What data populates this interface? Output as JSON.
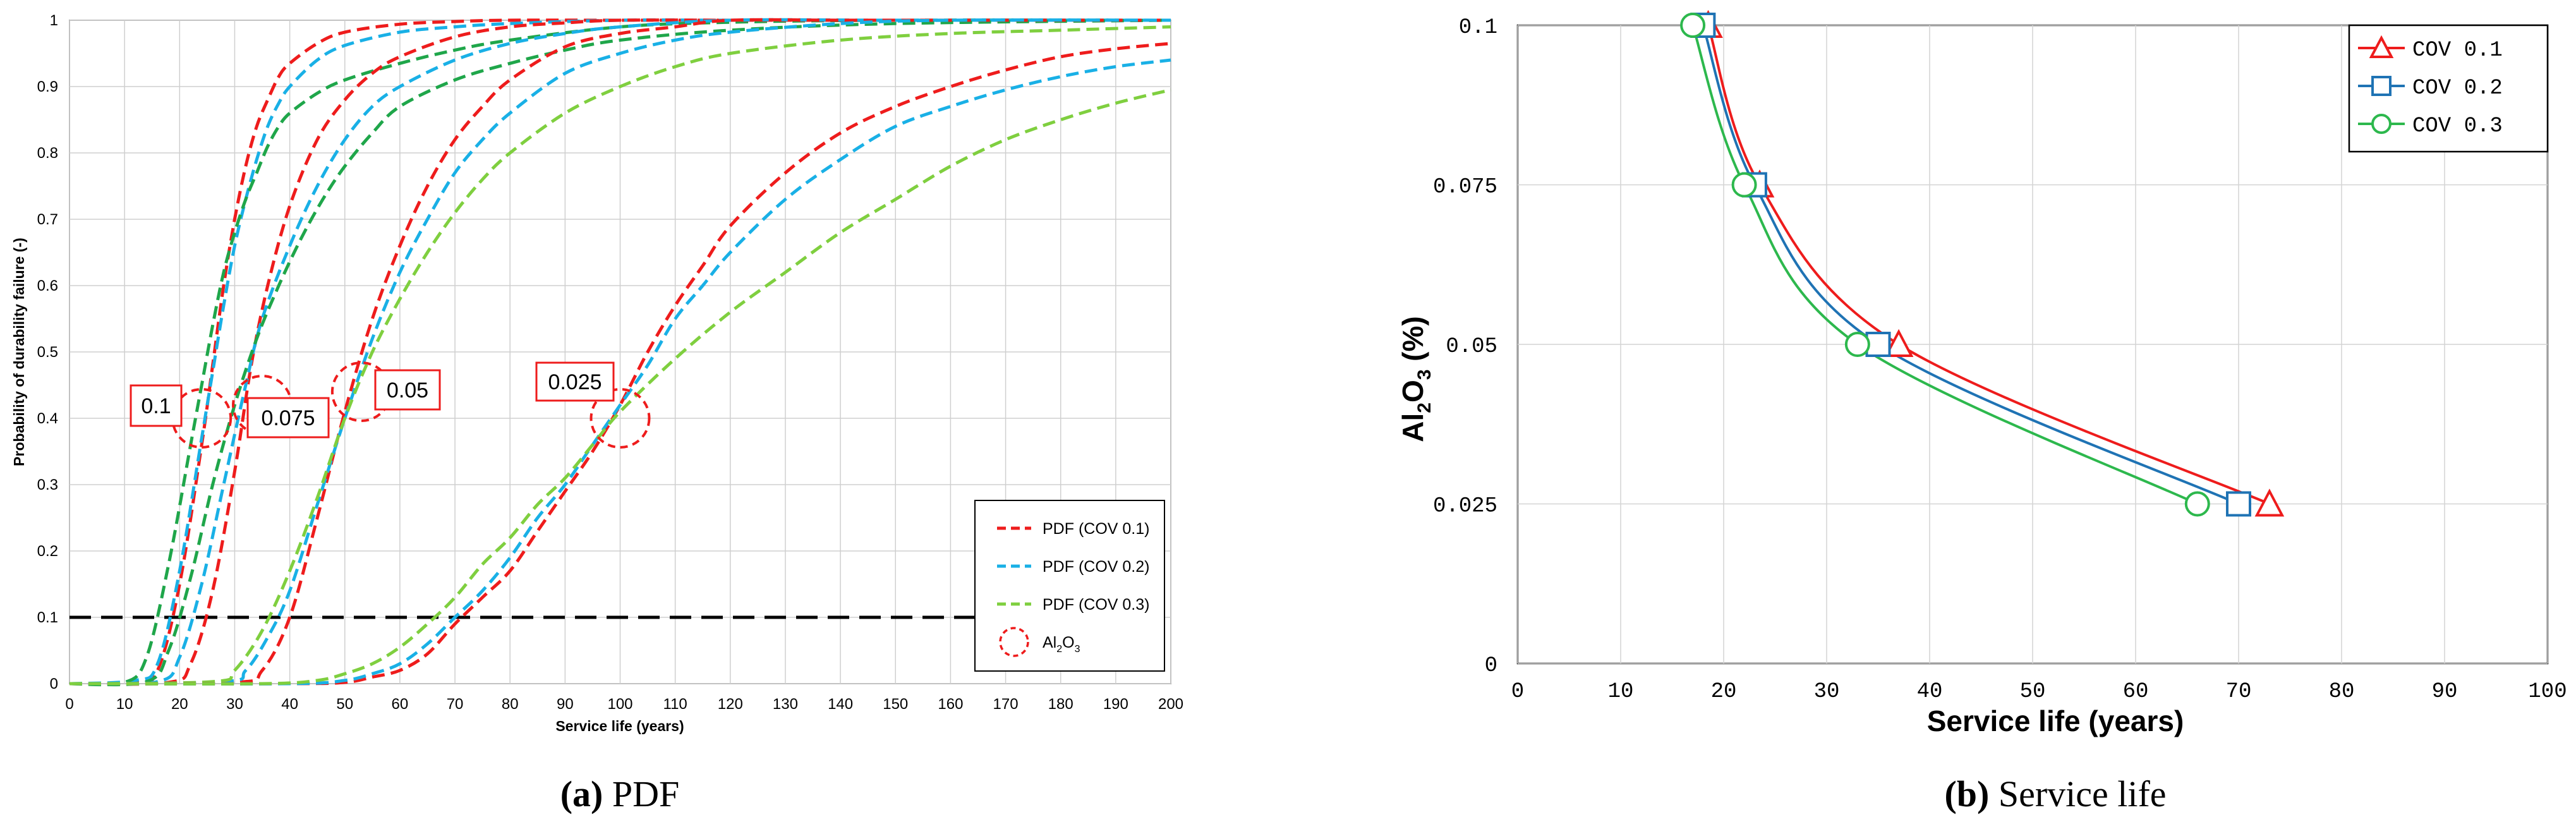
{
  "chart_data": [
    {
      "type": "line",
      "panel_caption": {
        "letter": "(a)",
        "text": " PDF"
      },
      "title": "",
      "xlabel": "Service life (years)",
      "ylabel": "Probability of durability failure (-)",
      "xlim": [
        0,
        200
      ],
      "ylim": [
        0,
        1
      ],
      "xticks": [
        0,
        10,
        20,
        30,
        40,
        50,
        60,
        70,
        80,
        90,
        100,
        110,
        120,
        130,
        140,
        150,
        160,
        170,
        180,
        190,
        200
      ],
      "yticks": [
        0,
        0.1,
        0.2,
        0.3,
        0.4,
        0.5,
        0.6,
        0.7,
        0.8,
        0.9,
        1
      ],
      "ytick_labels": [
        "0",
        "0.1",
        "0.2",
        "0.3",
        "0.4",
        "0.5",
        "0.6",
        "0.7",
        "0.8",
        "0.9",
        "1"
      ],
      "grid": true,
      "legend_position": "bottom-right",
      "threshold": {
        "y": 0.1,
        "style": "dashed",
        "color": "#000000"
      },
      "colors": {
        "cov01": "#ee1c1c",
        "cov02": "#19b0e6",
        "cov03": "#7fcf3f",
        "cov03_dark": "#1fa64a"
      },
      "legend": [
        {
          "label": "PDF (COV 0.1)",
          "color": "#ee1c1c",
          "kind": "line"
        },
        {
          "label": "PDF (COV 0.2)",
          "color": "#19b0e6",
          "kind": "line"
        },
        {
          "label": "PDF (COV 0.3)",
          "color": "#7fcf3f",
          "kind": "line"
        },
        {
          "label_main": "Al",
          "label_sub1": "2",
          "label_mid": "O",
          "label_sub2": "3",
          "color": "#ee1c1c",
          "kind": "circle"
        }
      ],
      "annotations": [
        {
          "label": "0.1",
          "x": 24,
          "y": 0.4
        },
        {
          "label": "0.075",
          "x": 35,
          "y": 0.42
        },
        {
          "label": "0.05",
          "x": 53,
          "y": 0.44
        },
        {
          "label": "0.025",
          "x": 100,
          "y": 0.4
        }
      ],
      "series": [
        {
          "name": "Al2O3 0.1 - COV 0.1",
          "group": "0.1",
          "cov": "0.1",
          "x": [
            0,
            12,
            16,
            20,
            24,
            26,
            28,
            30,
            32,
            34,
            36,
            38,
            40,
            45,
            50,
            60,
            70,
            80,
            100,
            120,
            150,
            200
          ],
          "y": [
            0,
            0.002,
            0.02,
            0.15,
            0.36,
            0.48,
            0.6,
            0.7,
            0.78,
            0.84,
            0.88,
            0.915,
            0.935,
            0.965,
            0.982,
            0.994,
            0.998,
            1,
            1,
            1,
            1,
            1
          ]
        },
        {
          "name": "Al2O3 0.1 - COV 0.2",
          "group": "0.1",
          "cov": "0.2",
          "x": [
            0,
            12,
            16,
            20,
            24,
            26,
            28,
            30,
            32,
            34,
            36,
            38,
            40,
            45,
            50,
            60,
            70,
            80,
            100,
            120,
            150,
            200
          ],
          "y": [
            0,
            0.005,
            0.03,
            0.17,
            0.37,
            0.47,
            0.57,
            0.66,
            0.73,
            0.79,
            0.84,
            0.875,
            0.9,
            0.94,
            0.962,
            0.982,
            0.99,
            0.995,
            1,
            1,
            1,
            1
          ]
        },
        {
          "name": "Al2O3 0.1 - COV 0.3",
          "group": "0.1",
          "cov": "0.3",
          "x": [
            0,
            10,
            14,
            18,
            22,
            24,
            26,
            28,
            30,
            32,
            34,
            36,
            38,
            40,
            45,
            50,
            60,
            70,
            80,
            100,
            120,
            150,
            200
          ],
          "y": [
            0,
            0.002,
            0.04,
            0.18,
            0.36,
            0.45,
            0.54,
            0.62,
            0.68,
            0.73,
            0.77,
            0.81,
            0.84,
            0.86,
            0.89,
            0.91,
            0.935,
            0.955,
            0.97,
            0.99,
            0.997,
            1,
            1
          ]
        },
        {
          "name": "Al2O3 0.075 - COV 0.1",
          "group": "0.075",
          "cov": "0.1",
          "x": [
            0,
            18,
            22,
            26,
            30,
            33,
            36,
            40,
            45,
            50,
            55,
            60,
            70,
            80,
            90,
            100,
            120,
            150,
            200
          ],
          "y": [
            0,
            0.002,
            0.03,
            0.14,
            0.32,
            0.48,
            0.6,
            0.72,
            0.82,
            0.88,
            0.92,
            0.945,
            0.975,
            0.99,
            0.996,
            1,
            1,
            1,
            1
          ]
        },
        {
          "name": "Al2O3 0.075 - COV 0.2",
          "group": "0.075",
          "cov": "0.2",
          "x": [
            0,
            16,
            20,
            24,
            28,
            32,
            35,
            40,
            45,
            50,
            55,
            60,
            70,
            80,
            90,
            100,
            120,
            150,
            200
          ],
          "y": [
            0,
            0.003,
            0.04,
            0.15,
            0.3,
            0.45,
            0.55,
            0.66,
            0.75,
            0.82,
            0.87,
            0.9,
            0.94,
            0.965,
            0.98,
            0.99,
            1,
            1,
            1
          ]
        },
        {
          "name": "Al2O3 0.075 - COV 0.3",
          "group": "0.075",
          "cov": "0.3",
          "x": [
            0,
            14,
            18,
            22,
            26,
            30,
            34,
            38,
            42,
            46,
            50,
            55,
            60,
            70,
            80,
            90,
            100,
            120,
            150,
            200
          ],
          "y": [
            0,
            0.003,
            0.05,
            0.16,
            0.3,
            0.42,
            0.52,
            0.6,
            0.67,
            0.73,
            0.78,
            0.83,
            0.87,
            0.91,
            0.935,
            0.955,
            0.97,
            0.985,
            0.995,
            1
          ]
        },
        {
          "name": "Al2O3 0.05 - COV 0.1",
          "group": "0.05",
          "cov": "0.1",
          "x": [
            0,
            30,
            35,
            40,
            45,
            50,
            55,
            60,
            65,
            70,
            75,
            80,
            90,
            100,
            110,
            120,
            140,
            160,
            200
          ],
          "y": [
            0,
            0.002,
            0.02,
            0.1,
            0.25,
            0.41,
            0.55,
            0.66,
            0.75,
            0.82,
            0.87,
            0.91,
            0.96,
            0.98,
            0.99,
            1,
            1,
            1,
            1
          ]
        },
        {
          "name": "Al2O3 0.05 - COV 0.2",
          "group": "0.05",
          "cov": "0.2",
          "x": [
            0,
            28,
            32,
            36,
            40,
            45,
            50,
            55,
            60,
            65,
            70,
            75,
            80,
            90,
            100,
            110,
            120,
            140,
            160,
            200
          ],
          "y": [
            0,
            0.003,
            0.02,
            0.07,
            0.14,
            0.27,
            0.4,
            0.52,
            0.62,
            0.7,
            0.77,
            0.82,
            0.86,
            0.92,
            0.95,
            0.97,
            0.982,
            0.995,
            1,
            1
          ]
        },
        {
          "name": "Al2O3 0.05 - COV 0.3",
          "group": "0.05",
          "cov": "0.3",
          "x": [
            0,
            26,
            30,
            35,
            40,
            45,
            50,
            55,
            60,
            65,
            70,
            75,
            80,
            90,
            100,
            110,
            120,
            140,
            160,
            180,
            200
          ],
          "y": [
            0,
            0.003,
            0.02,
            0.08,
            0.17,
            0.28,
            0.4,
            0.5,
            0.58,
            0.65,
            0.71,
            0.76,
            0.8,
            0.86,
            0.9,
            0.93,
            0.95,
            0.97,
            0.98,
            0.985,
            0.99
          ]
        },
        {
          "name": "Al2O3 0.025 - COV 0.1",
          "group": "0.025",
          "cov": "0.1",
          "x": [
            0,
            40,
            50,
            55,
            60,
            65,
            70,
            75,
            80,
            85,
            90,
            95,
            100,
            105,
            110,
            115,
            120,
            130,
            140,
            150,
            160,
            170,
            180,
            190,
            200
          ],
          "y": [
            0,
            0,
            0.002,
            0.01,
            0.02,
            0.045,
            0.09,
            0.13,
            0.17,
            0.23,
            0.29,
            0.35,
            0.42,
            0.5,
            0.57,
            0.63,
            0.69,
            0.77,
            0.83,
            0.87,
            0.9,
            0.925,
            0.945,
            0.957,
            0.965
          ]
        },
        {
          "name": "Al2O3 0.025 - COV 0.2",
          "group": "0.025",
          "cov": "0.2",
          "x": [
            0,
            40,
            50,
            55,
            60,
            65,
            70,
            75,
            80,
            85,
            90,
            95,
            100,
            105,
            110,
            115,
            120,
            130,
            140,
            150,
            160,
            170,
            180,
            190,
            200
          ],
          "y": [
            0,
            0,
            0.005,
            0.015,
            0.03,
            0.06,
            0.1,
            0.14,
            0.19,
            0.25,
            0.3,
            0.36,
            0.42,
            0.48,
            0.55,
            0.6,
            0.65,
            0.73,
            0.79,
            0.84,
            0.87,
            0.895,
            0.915,
            0.93,
            0.94
          ]
        },
        {
          "name": "Al2O3 0.025 - COV 0.3",
          "group": "0.025",
          "cov": "0.3",
          "x": [
            0,
            35,
            45,
            50,
            55,
            60,
            65,
            70,
            75,
            80,
            85,
            90,
            95,
            100,
            110,
            120,
            130,
            140,
            150,
            160,
            170,
            180,
            190,
            200
          ],
          "y": [
            0,
            0,
            0.005,
            0.015,
            0.03,
            0.055,
            0.09,
            0.13,
            0.18,
            0.22,
            0.27,
            0.31,
            0.36,
            0.41,
            0.49,
            0.56,
            0.62,
            0.68,
            0.73,
            0.78,
            0.82,
            0.85,
            0.875,
            0.895
          ]
        }
      ]
    },
    {
      "type": "line",
      "panel_caption": {
        "letter": "(b)",
        "text": " Service life"
      },
      "title": "",
      "xlabel": "Service life (years)",
      "ylabel": {
        "main": "Al",
        "sub1": "2",
        "mid": "O",
        "sub2": "3",
        "tail": " (%)"
      },
      "xlim": [
        0,
        100
      ],
      "ylim": [
        0,
        0.1
      ],
      "xticks": [
        0,
        10,
        20,
        30,
        40,
        50,
        60,
        70,
        80,
        90,
        100
      ],
      "yticks": [
        0,
        0.025,
        0.05,
        0.075,
        0.1
      ],
      "ytick_labels": [
        "0",
        "0.025",
        "0.05",
        "0.075",
        "0.1"
      ],
      "grid": true,
      "legend_position": "top-right",
      "series": [
        {
          "name": "COV 0.1",
          "color": "#ee1c1c",
          "marker": "triangle",
          "x": [
            18.5,
            23.5,
            37,
            73
          ],
          "y": [
            0.1,
            0.075,
            0.05,
            0.025
          ]
        },
        {
          "name": "COV 0.2",
          "color": "#1f73b4",
          "marker": "square",
          "x": [
            18,
            23,
            35,
            70
          ],
          "y": [
            0.1,
            0.075,
            0.05,
            0.025
          ]
        },
        {
          "name": "COV 0.3",
          "color": "#2db84d",
          "marker": "circle",
          "x": [
            17,
            22,
            33,
            66
          ],
          "y": [
            0.1,
            0.075,
            0.05,
            0.025
          ]
        }
      ]
    }
  ]
}
